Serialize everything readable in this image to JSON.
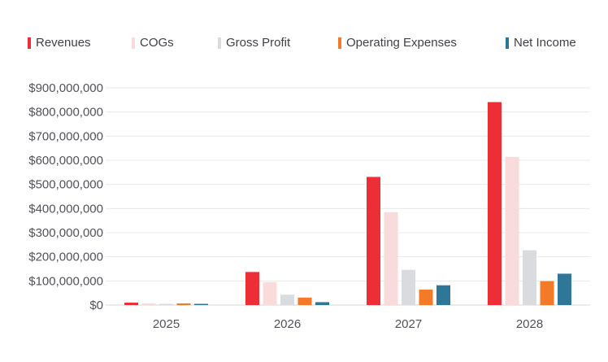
{
  "chart_data": {
    "type": "bar",
    "title": "",
    "xlabel": "",
    "ylabel": "",
    "categories": [
      "2025",
      "2026",
      "2027",
      "2028"
    ],
    "ylim": [
      0,
      900000000
    ],
    "yticks": [
      "$0",
      "$100,000,000",
      "$200,000,000",
      "$300,000,000",
      "$400,000,000",
      "$500,000,000",
      "$600,000,000",
      "$700,000,000",
      "$800,000,000",
      "$900,000,000"
    ],
    "grid": true,
    "legend_position": "top",
    "series": [
      {
        "name": "Revenues",
        "color": "#ee2e36",
        "values": [
          10000000,
          137000000,
          531000000,
          841000000
        ]
      },
      {
        "name": "COGs",
        "color": "#fadbdb",
        "values": [
          7000000,
          95000000,
          385000000,
          614000000
        ]
      },
      {
        "name": "Gross Profit",
        "color": "#d9dbde",
        "values": [
          3000000,
          43000000,
          146000000,
          227000000
        ]
      },
      {
        "name": "Operating Expenses",
        "color": "#f47a28",
        "values": [
          7000000,
          31000000,
          64000000,
          99000000
        ]
      },
      {
        "name": "Net Income",
        "color": "#2e7799",
        "values": [
          4000000,
          12000000,
          82000000,
          130000000
        ]
      }
    ]
  }
}
